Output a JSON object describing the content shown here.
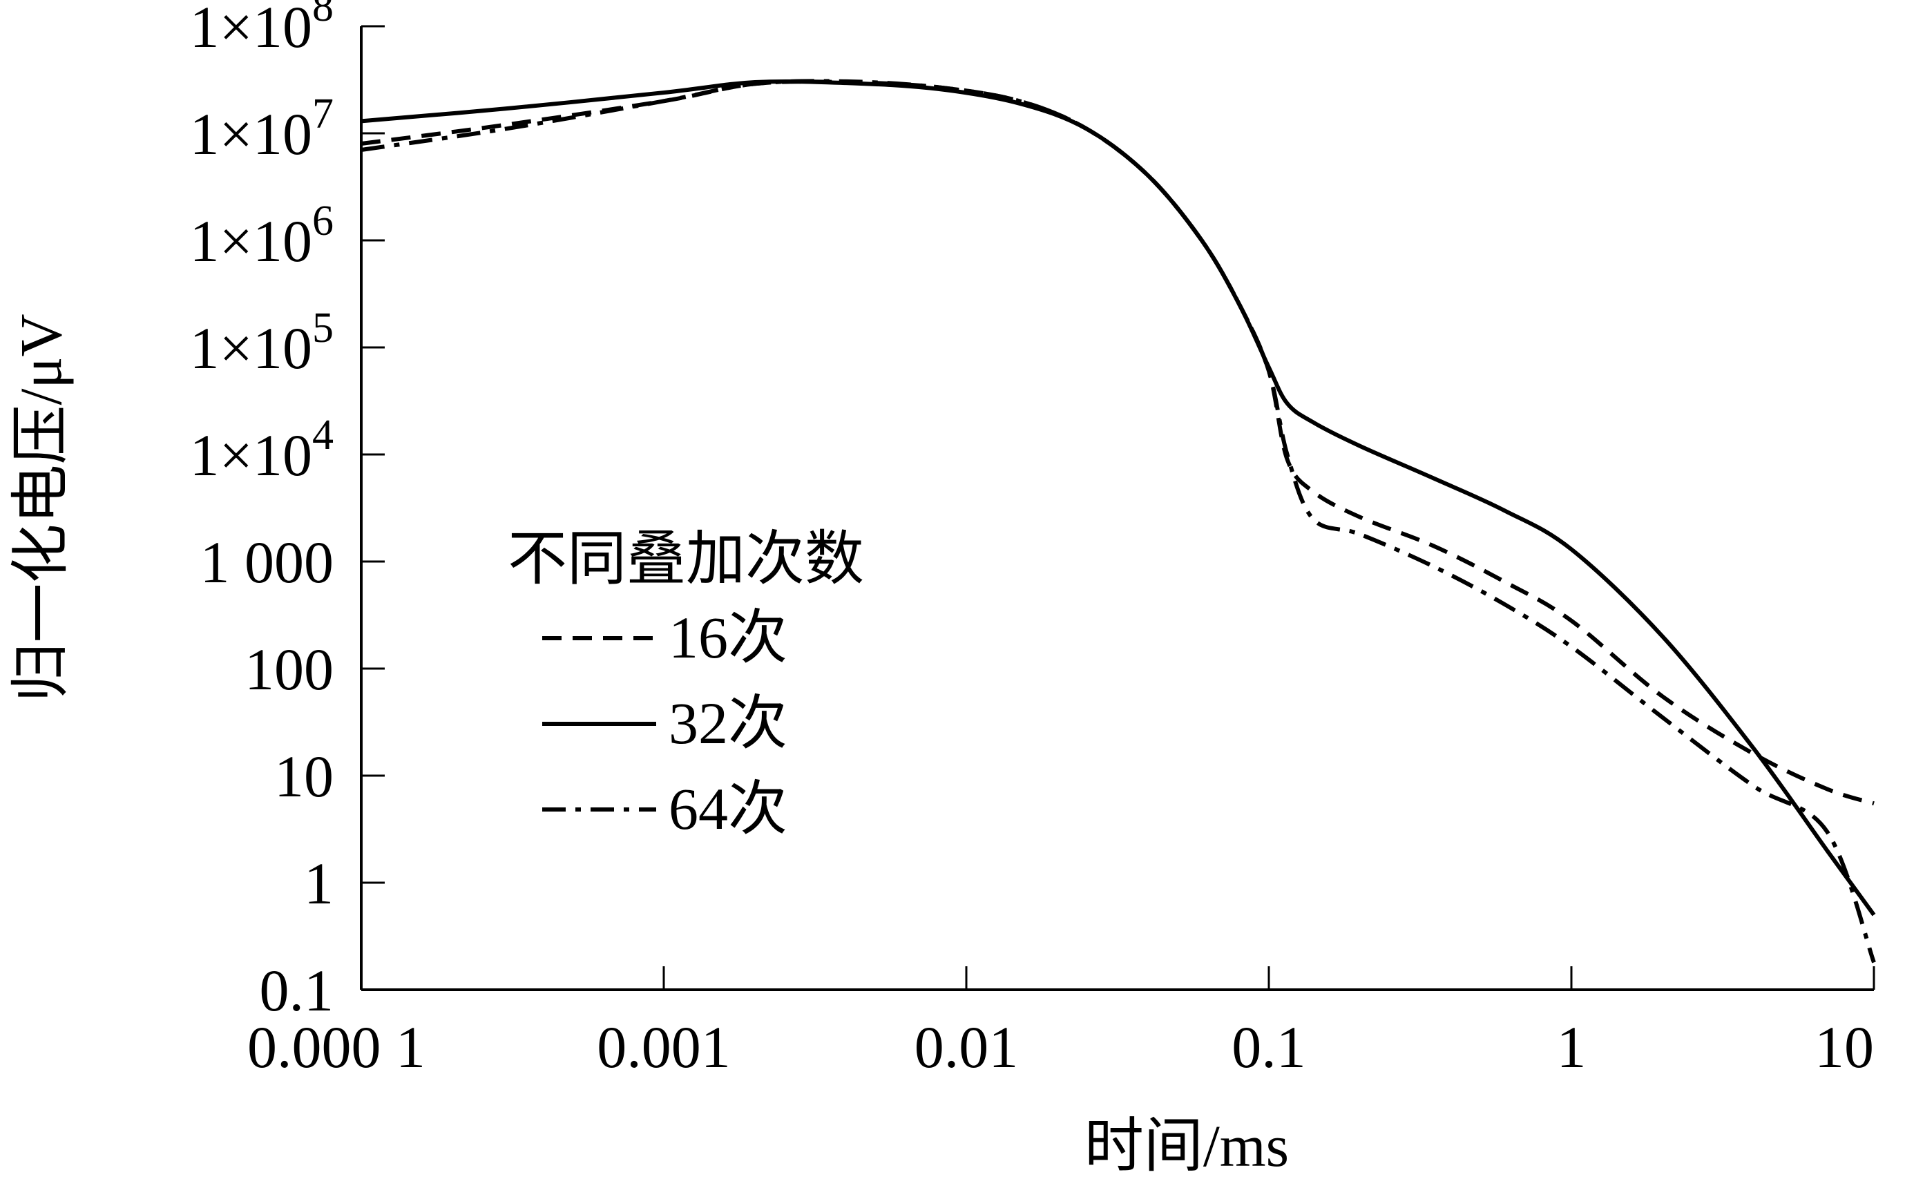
{
  "chart_data": {
    "type": "line",
    "xlabel": "时间/ms",
    "ylabel": "归一化电压/μV",
    "xscale": "log",
    "yscale": "log",
    "xlim": [
      0.0001,
      10
    ],
    "ylim": [
      0.1,
      100000000
    ],
    "x_ticks": [
      {
        "value": 0.0001,
        "label": "0.000 1"
      },
      {
        "value": 0.001,
        "label": "0.001"
      },
      {
        "value": 0.01,
        "label": "0.01"
      },
      {
        "value": 0.1,
        "label": "0.1"
      },
      {
        "value": 1,
        "label": "1"
      },
      {
        "value": 10,
        "label": "10"
      }
    ],
    "y_ticks": [
      {
        "value": 0.1,
        "label": "0.1"
      },
      {
        "value": 1,
        "label": "1"
      },
      {
        "value": 10,
        "label": "10"
      },
      {
        "value": 100,
        "label": "100"
      },
      {
        "value": 1000,
        "label": "1 000"
      },
      {
        "value": 10000,
        "base": "1×10",
        "exp": "4"
      },
      {
        "value": 100000,
        "base": "1×10",
        "exp": "5"
      },
      {
        "value": 1000000,
        "base": "1×10",
        "exp": "6"
      },
      {
        "value": 10000000,
        "base": "1×10",
        "exp": "7"
      },
      {
        "value": 100000000,
        "base": "1×10",
        "exp": "8"
      }
    ],
    "grid": false,
    "legend": {
      "title": "不同叠加次数",
      "position": "left-middle"
    },
    "series": [
      {
        "name": "16次",
        "dash": "dashed",
        "x": [
          0.0001,
          0.0003,
          0.001,
          0.002,
          0.004,
          0.008,
          0.015,
          0.025,
          0.04,
          0.06,
          0.08,
          0.1,
          0.115,
          0.14,
          0.2,
          0.35,
          0.6,
          1,
          2,
          4,
          7,
          10
        ],
        "y": [
          8000000,
          12000000,
          20000000,
          29000000,
          30000000,
          27000000,
          20000000,
          11000000,
          4000000,
          1000000,
          250000,
          60000,
          9000,
          4500,
          2600,
          1400,
          650,
          280,
          55,
          16,
          7.5,
          5.5
        ]
      },
      {
        "name": "32次",
        "dash": "solid",
        "x": [
          0.0001,
          0.0003,
          0.001,
          0.002,
          0.004,
          0.008,
          0.015,
          0.025,
          0.04,
          0.06,
          0.08,
          0.1,
          0.115,
          0.14,
          0.2,
          0.35,
          0.6,
          1,
          2,
          4,
          7,
          10
        ],
        "y": [
          13000000,
          17000000,
          24000000,
          30000000,
          29500000,
          26000000,
          19000000,
          11000000,
          4000000,
          1000000,
          250000,
          65000,
          30000,
          20000,
          12000,
          6000,
          3000,
          1300,
          200,
          18,
          2,
          0.5
        ]
      },
      {
        "name": "64次",
        "dash": "dashdot",
        "x": [
          0.0001,
          0.0003,
          0.001,
          0.002,
          0.004,
          0.008,
          0.015,
          0.025,
          0.04,
          0.06,
          0.08,
          0.1,
          0.115,
          0.14,
          0.2,
          0.35,
          0.6,
          1,
          2,
          4,
          7,
          10
        ],
        "y": [
          7000000,
          11000000,
          20000000,
          29000000,
          30500000,
          27000000,
          20000000,
          11000000,
          4000000,
          1000000,
          250000,
          60000,
          10000,
          2500,
          1800,
          900,
          400,
          160,
          35,
          8,
          3,
          0.18
        ]
      }
    ]
  }
}
